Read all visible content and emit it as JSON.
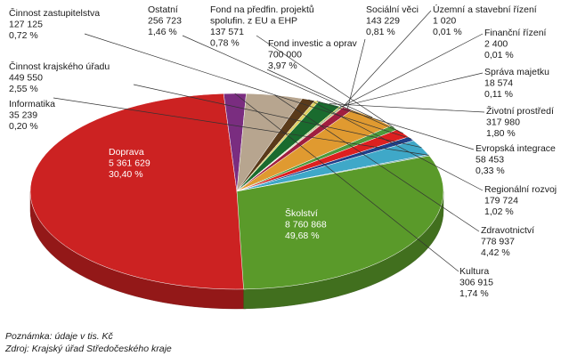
{
  "chart_data": {
    "type": "pie",
    "style": "3d-pie",
    "unit_note": "Poznámka: údaje v tis. Kč",
    "source": "Zdroj: Krajský úřad Středočeského kraje",
    "slices": [
      {
        "label": "Školství",
        "value": "8 760 868",
        "pct": "49,68 %",
        "share": 0.4968,
        "color": "#cc2222",
        "inside": true
      },
      {
        "label": "Kultura",
        "value": "306 915",
        "pct": "1,74 %",
        "share": 0.0174,
        "color": "#7a2d80"
      },
      {
        "label": "Zdravotnictví",
        "value": "778 937",
        "pct": "4,42 %",
        "share": 0.0442,
        "color": "#b7a58f"
      },
      {
        "label": "Regionální rozvoj",
        "value": "179 724",
        "pct": "1,02 %",
        "share": 0.0102,
        "color": "#5a3a1a"
      },
      {
        "label": "Evropská integrace",
        "value": "58 453",
        "pct": "0,33 %",
        "share": 0.0033,
        "color": "#e0d060"
      },
      {
        "label": "Životní prostředí",
        "value": "317 980",
        "pct": "1,80 %",
        "share": 0.018,
        "color": "#1a6b2e"
      },
      {
        "label": "Správa majetku",
        "value": "18 574",
        "pct": "0,11 %",
        "share": 0.0011,
        "color": "#c0d000"
      },
      {
        "label": "Finanční řízení",
        "value": "2 400",
        "pct": "0,01 %",
        "share": 0.0001,
        "color": "#0f4a80"
      },
      {
        "label": "Územní a stavební řízení",
        "value": "1 020",
        "pct": "0,01 %",
        "share": 0.0001,
        "color": "#f0c020"
      },
      {
        "label": "Sociální věci",
        "value": "143 229",
        "pct": "0,81 %",
        "share": 0.0081,
        "color": "#a01e40"
      },
      {
        "label": "Fond investic a oprav",
        "value": "700 000",
        "pct": "3,97 %",
        "share": 0.0397,
        "color": "#e09a30"
      },
      {
        "label": "Fond na předfin. projektů spolufin. z EU a EHP",
        "value": "137 571",
        "pct": "0,78 %",
        "share": 0.0078,
        "color": "#4e9a3c"
      },
      {
        "label": "Ostatní",
        "value": "256 723",
        "pct": "1,46 %",
        "share": 0.0146,
        "color": "#dd2020"
      },
      {
        "label": "Činnost zastupitelstva",
        "value": "127 125",
        "pct": "0,72 %",
        "share": 0.0072,
        "color": "#20408a"
      },
      {
        "label": "Činnost krajského úřadu",
        "value": "449 550",
        "pct": "2,55 %",
        "share": 0.0255,
        "color": "#3fa8c8"
      },
      {
        "label": "Informatika",
        "value": "35 239",
        "pct": "0,20 %",
        "share": 0.002,
        "color": "#5a9aa0"
      },
      {
        "label": "Doprava",
        "value": "5 361 629",
        "pct": "30,40 %",
        "share": 0.304,
        "color": "#5a9a2a",
        "inside": true
      }
    ]
  }
}
